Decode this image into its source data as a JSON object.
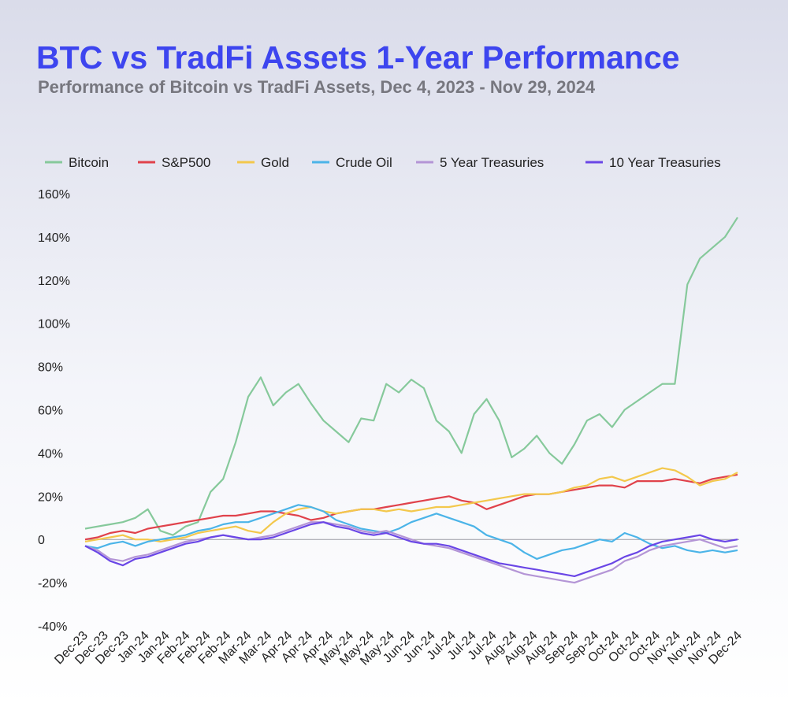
{
  "header": {
    "title": "BTC vs TradFi Assets 1-Year Performance",
    "subtitle": "Performance of Bitcoin vs TradFi Assets, Dec 4, 2023 - Nov 29, 2024"
  },
  "chart_data": {
    "type": "line",
    "title": "BTC vs TradFi Assets 1-Year Performance",
    "subtitle": "Performance of Bitcoin vs TradFi Assets, Dec 4, 2023 - Nov 29, 2024",
    "xlabel": "",
    "ylabel": "",
    "ylim": [
      -40,
      160
    ],
    "y_ticks": [
      -40,
      -20,
      0,
      20,
      40,
      60,
      80,
      100,
      120,
      140,
      160
    ],
    "y_tick_labels": [
      "-40%",
      "-20%",
      "0",
      "20%",
      "40%",
      "60%",
      "80%",
      "100%",
      "120%",
      "140%",
      "160%"
    ],
    "x_tick_labels": [
      "Dec-23",
      "Dec-23",
      "Dec-23",
      "Jan-24",
      "Jan-24",
      "Feb-24",
      "Feb-24",
      "Feb-24",
      "Mar-24",
      "Mar-24",
      "Apr-24",
      "Apr-24",
      "Apr-24",
      "May-24",
      "May-24",
      "May-24",
      "Jun-24",
      "Jun-24",
      "Jul-24",
      "Jul-24",
      "Jul-24",
      "Aug-24",
      "Aug-24",
      "Aug-24",
      "Sep-24",
      "Sep-24",
      "Oct-24",
      "Oct-24",
      "Oct-24",
      "Nov-24",
      "Nov-24",
      "Nov-24",
      "Dec-24"
    ],
    "grid": false,
    "zero_line": true,
    "legend_position": "top",
    "x": [
      "2023-12-04",
      "2023-12-11",
      "2023-12-18",
      "2023-12-25",
      "2024-01-01",
      "2024-01-08",
      "2024-01-15",
      "2024-01-22",
      "2024-01-29",
      "2024-02-05",
      "2024-02-12",
      "2024-02-19",
      "2024-02-26",
      "2024-03-04",
      "2024-03-11",
      "2024-03-18",
      "2024-03-25",
      "2024-04-01",
      "2024-04-08",
      "2024-04-15",
      "2024-04-22",
      "2024-04-29",
      "2024-05-06",
      "2024-05-13",
      "2024-05-20",
      "2024-05-27",
      "2024-06-03",
      "2024-06-10",
      "2024-06-17",
      "2024-06-24",
      "2024-07-01",
      "2024-07-08",
      "2024-07-15",
      "2024-07-22",
      "2024-07-29",
      "2024-08-05",
      "2024-08-12",
      "2024-08-19",
      "2024-08-26",
      "2024-09-02",
      "2024-09-09",
      "2024-09-16",
      "2024-09-23",
      "2024-09-30",
      "2024-10-07",
      "2024-10-14",
      "2024-10-21",
      "2024-10-28",
      "2024-11-04",
      "2024-11-11",
      "2024-11-18",
      "2024-11-25",
      "2024-11-29"
    ],
    "series": [
      {
        "name": "Bitcoin",
        "color": "#86c99b",
        "values": [
          5,
          6,
          7,
          8,
          10,
          14,
          4,
          2,
          6,
          8,
          22,
          28,
          45,
          66,
          75,
          62,
          68,
          72,
          63,
          55,
          50,
          45,
          56,
          55,
          72,
          68,
          74,
          70,
          55,
          50,
          40,
          58,
          65,
          55,
          38,
          42,
          48,
          40,
          35,
          44,
          55,
          58,
          52,
          60,
          64,
          68,
          72,
          72,
          118,
          130,
          135,
          140,
          149
        ]
      },
      {
        "name": "S&P500",
        "color": "#e0424b",
        "values": [
          0,
          1,
          3,
          4,
          3,
          5,
          6,
          7,
          8,
          9,
          10,
          11,
          11,
          12,
          13,
          13,
          12,
          11,
          9,
          10,
          12,
          13,
          14,
          14,
          15,
          16,
          17,
          18,
          19,
          20,
          18,
          17,
          14,
          16,
          18,
          20,
          21,
          21,
          22,
          23,
          24,
          25,
          25,
          24,
          27,
          27,
          27,
          28,
          27,
          26,
          28,
          29,
          30
        ]
      },
      {
        "name": "Gold",
        "color": "#f3c84c",
        "values": [
          -1,
          0,
          1,
          2,
          0,
          0,
          -1,
          0,
          1,
          3,
          4,
          5,
          6,
          4,
          3,
          8,
          12,
          14,
          15,
          13,
          12,
          13,
          14,
          14,
          13,
          14,
          13,
          14,
          15,
          15,
          16,
          17,
          18,
          19,
          20,
          21,
          21,
          21,
          22,
          24,
          25,
          28,
          29,
          27,
          29,
          31,
          33,
          32,
          29,
          25,
          27,
          28,
          31
        ]
      },
      {
        "name": "Crude Oil",
        "color": "#4bb4e8",
        "values": [
          -3,
          -4,
          -2,
          -1,
          -3,
          -1,
          0,
          1,
          2,
          4,
          5,
          7,
          8,
          8,
          10,
          12,
          14,
          16,
          15,
          13,
          9,
          7,
          5,
          4,
          3,
          5,
          8,
          10,
          12,
          10,
          8,
          6,
          2,
          0,
          -2,
          -6,
          -9,
          -7,
          -5,
          -4,
          -2,
          0,
          -1,
          3,
          1,
          -2,
          -4,
          -3,
          -5,
          -6,
          -5,
          -6,
          -5
        ]
      },
      {
        "name": "5 Year Treasuries",
        "color": "#b495d6",
        "values": [
          -3,
          -5,
          -9,
          -10,
          -8,
          -7,
          -5,
          -3,
          -1,
          0,
          1,
          2,
          1,
          0,
          1,
          2,
          4,
          6,
          8,
          8,
          7,
          6,
          4,
          3,
          4,
          2,
          0,
          -2,
          -3,
          -4,
          -6,
          -8,
          -10,
          -12,
          -14,
          -16,
          -17,
          -18,
          -19,
          -20,
          -18,
          -16,
          -14,
          -10,
          -8,
          -5,
          -3,
          -2,
          -1,
          0,
          -2,
          -4,
          -3
        ]
      },
      {
        "name": "10 Year Treasuries",
        "color": "#6a46e6",
        "values": [
          -3,
          -6,
          -10,
          -12,
          -9,
          -8,
          -6,
          -4,
          -2,
          -1,
          1,
          2,
          1,
          0,
          0,
          1,
          3,
          5,
          7,
          8,
          6,
          5,
          3,
          2,
          3,
          1,
          -1,
          -2,
          -2,
          -3,
          -5,
          -7,
          -9,
          -11,
          -12,
          -13,
          -14,
          -15,
          -16,
          -17,
          -15,
          -13,
          -11,
          -8,
          -6,
          -3,
          -1,
          0,
          1,
          2,
          0,
          -1,
          0
        ]
      }
    ]
  }
}
